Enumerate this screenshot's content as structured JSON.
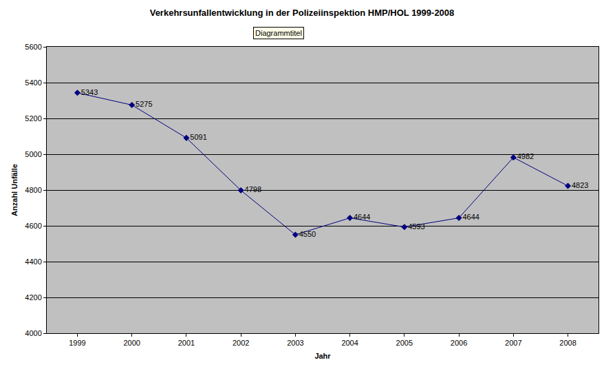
{
  "chart_data": {
    "type": "line",
    "title": "Verkehrsunfallentwicklung in der Polizeiinspektion HMP/HOL 1999-2008",
    "annotations": [
      "Diagrammtitel"
    ],
    "x_label": "Jahr",
    "y_label": "Anzahl Unfälle",
    "categories": [
      "1999",
      "2000",
      "2001",
      "2002",
      "2003",
      "2004",
      "2005",
      "2006",
      "2007",
      "2008"
    ],
    "values": [
      5343,
      5275,
      5091,
      4798,
      4550,
      4644,
      4593,
      4644,
      4982,
      4823
    ],
    "color": "#000080",
    "marker": "diamond",
    "line_style": "solid",
    "ylim": [
      4000,
      5600
    ],
    "yticks": [
      4000,
      4200,
      4400,
      4600,
      4800,
      5000,
      5200,
      5400,
      5600
    ],
    "grid": true,
    "data_labels": true
  }
}
